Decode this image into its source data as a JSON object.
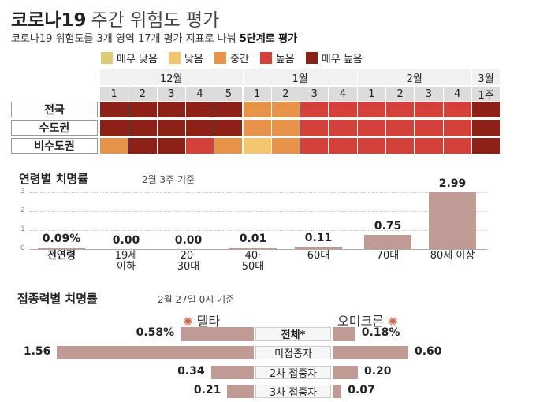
{
  "header": {
    "title": "코로나19",
    "title_light": "주간 위험도 평가",
    "subtitle_pre": "코로나19 위험도를 3개 영역 17개 평가 지표로 나눠 ",
    "subtitle_bold": "5단계로 평가"
  },
  "legend": [
    {
      "label": "매우 낮음",
      "color": "#dccd74"
    },
    {
      "label": "낮음",
      "color": "#f4c56f"
    },
    {
      "label": "중간",
      "color": "#e8934a"
    },
    {
      "label": "높음",
      "color": "#d4403a"
    },
    {
      "label": "매우 높음",
      "color": "#8e2117"
    }
  ],
  "heatmap": {
    "months": [
      {
        "label": "12월",
        "weeks": [
          "1",
          "2",
          "3",
          "4",
          "5"
        ]
      },
      {
        "label": "1월",
        "weeks": [
          "1",
          "2",
          "3",
          "4"
        ]
      },
      {
        "label": "2월",
        "weeks": [
          "1",
          "2",
          "3",
          "4"
        ]
      },
      {
        "label": "3월",
        "weeks": [
          "1주"
        ]
      }
    ],
    "rows": [
      {
        "label": "전국",
        "levels": [
          5,
          5,
          5,
          5,
          5,
          3,
          3,
          4,
          4,
          4,
          4,
          4,
          4,
          5
        ]
      },
      {
        "label": "수도권",
        "levels": [
          5,
          5,
          5,
          5,
          5,
          3,
          3,
          4,
          4,
          4,
          4,
          4,
          4,
          5
        ]
      },
      {
        "label": "비수도권",
        "levels": [
          3,
          5,
          5,
          4,
          3,
          2,
          3,
          4,
          4,
          4,
          4,
          4,
          4,
          5
        ]
      }
    ]
  },
  "chart_data": [
    {
      "type": "bar",
      "title": "연령별 치명률",
      "note": "2월 3주 기준",
      "categories": [
        "전연령",
        "19세 이하",
        "20· 30대",
        "40· 50대",
        "60대",
        "70대",
        "80세 이상"
      ],
      "categories_line2": [
        "",
        "이하",
        "30대",
        "50대",
        "",
        "",
        ""
      ],
      "categories_line1": [
        "전연령",
        "19세",
        "20·",
        "40·",
        "60대",
        "70대",
        "80세 이상"
      ],
      "values": [
        0.09,
        0.0,
        0.0,
        0.01,
        0.11,
        0.75,
        2.99
      ],
      "value_labels": [
        "0.09%",
        "0.00",
        "0.00",
        "0.01",
        "0.11",
        "0.75",
        "2.99"
      ],
      "yticks": [
        "3",
        "2",
        "1",
        "0"
      ],
      "ylim": [
        0,
        3
      ]
    },
    {
      "type": "bar",
      "title": "접종력별 치명률",
      "note": "2월 27일 0시 기준",
      "categories": [
        "전체*",
        "미접종자",
        "2차 접종자",
        "3차 접종자"
      ],
      "series": [
        {
          "name": "델타",
          "values": [
            0.58,
            1.56,
            0.34,
            0.21
          ],
          "value_labels": [
            "0.58%",
            "1.56",
            "0.34",
            "0.21"
          ]
        },
        {
          "name": "오미크론",
          "values": [
            0.18,
            0.6,
            0.2,
            0.07
          ],
          "value_labels": [
            "0.18%",
            "0.60",
            "0.20",
            "0.07"
          ]
        }
      ]
    }
  ]
}
